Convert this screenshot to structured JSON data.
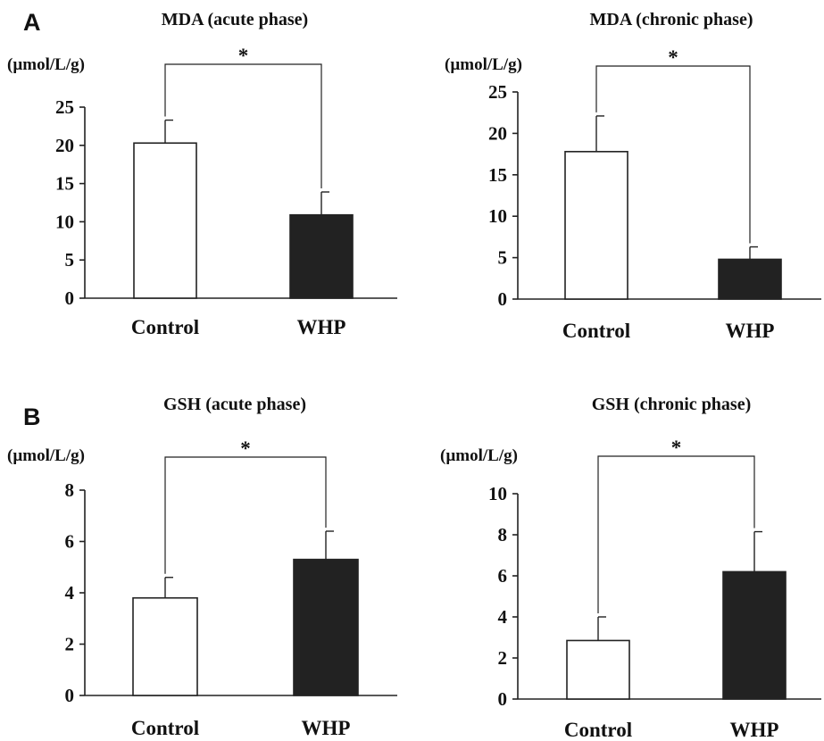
{
  "panels": [
    {
      "letter": "A"
    },
    {
      "letter": "B"
    }
  ],
  "chart_data": [
    {
      "type": "bar",
      "title": "MDA (acute phase)",
      "unit": "(µmol/L/g)",
      "ylim": [
        0,
        25
      ],
      "yticks": [
        0,
        5,
        10,
        15,
        20,
        25
      ],
      "categories": [
        "Control",
        "WHP"
      ],
      "values": [
        20.3,
        10.9
      ],
      "errors": [
        3.0,
        3.0
      ],
      "bar_colors": [
        "#ffffff",
        "#222222"
      ],
      "significance": "*",
      "grid": false
    },
    {
      "type": "bar",
      "title": "MDA (chronic phase)",
      "unit": "(µmol/L/g)",
      "ylim": [
        0,
        25
      ],
      "yticks": [
        0,
        5,
        10,
        15,
        20,
        25
      ],
      "categories": [
        "Control",
        "WHP"
      ],
      "values": [
        17.8,
        4.8
      ],
      "errors": [
        4.3,
        1.5
      ],
      "bar_colors": [
        "#ffffff",
        "#222222"
      ],
      "significance": "*",
      "grid": false
    },
    {
      "type": "bar",
      "title": "GSH (acute phase)",
      "unit": "(µmol/L/g)",
      "ylim": [
        0,
        8
      ],
      "yticks": [
        0,
        2,
        4,
        6,
        8
      ],
      "categories": [
        "Control",
        "WHP"
      ],
      "values": [
        3.8,
        5.3
      ],
      "errors": [
        0.8,
        1.1
      ],
      "bar_colors": [
        "#ffffff",
        "#222222"
      ],
      "significance": "*",
      "grid": false
    },
    {
      "type": "bar",
      "title": "GSH (chronic phase)",
      "unit": "(µmol/L/g)",
      "ylim": [
        0,
        10
      ],
      "yticks": [
        0,
        2,
        4,
        6,
        8,
        10
      ],
      "categories": [
        "Control",
        "WHP"
      ],
      "values": [
        2.85,
        6.2
      ],
      "errors": [
        1.15,
        1.95
      ],
      "bar_colors": [
        "#ffffff",
        "#222222"
      ],
      "significance": "*",
      "grid": false
    }
  ]
}
